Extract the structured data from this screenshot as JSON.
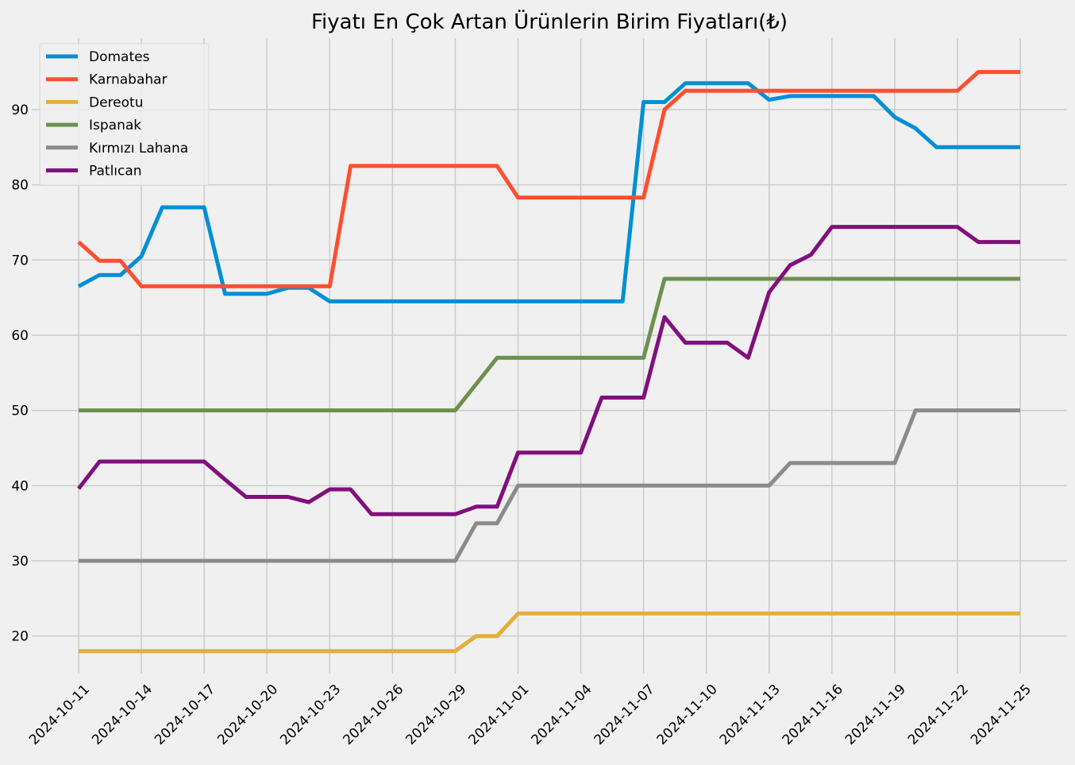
{
  "chart_data": {
    "type": "line",
    "title": "Fiyatı En Çok Artan Ürünlerin Birim Fiyatları(₺)",
    "xlabel": "",
    "ylabel": "",
    "x": [
      "2024-10-11",
      "2024-10-12",
      "2024-10-13",
      "2024-10-14",
      "2024-10-15",
      "2024-10-16",
      "2024-10-17",
      "2024-10-18",
      "2024-10-19",
      "2024-10-20",
      "2024-10-21",
      "2024-10-22",
      "2024-10-23",
      "2024-10-24",
      "2024-10-25",
      "2024-10-26",
      "2024-10-27",
      "2024-10-28",
      "2024-10-29",
      "2024-10-30",
      "2024-10-31",
      "2024-11-01",
      "2024-11-02",
      "2024-11-03",
      "2024-11-04",
      "2024-11-05",
      "2024-11-06",
      "2024-11-07",
      "2024-11-08",
      "2024-11-09",
      "2024-11-10",
      "2024-11-11",
      "2024-11-12",
      "2024-11-13",
      "2024-11-14",
      "2024-11-15",
      "2024-11-16",
      "2024-11-17",
      "2024-11-18",
      "2024-11-19",
      "2024-11-20",
      "2024-11-21",
      "2024-11-22",
      "2024-11-23",
      "2024-11-24",
      "2024-11-25"
    ],
    "x_ticks": [
      "2024-10-11",
      "2024-10-14",
      "2024-10-17",
      "2024-10-20",
      "2024-10-23",
      "2024-10-26",
      "2024-10-29",
      "2024-11-01",
      "2024-11-04",
      "2024-11-07",
      "2024-11-10",
      "2024-11-13",
      "2024-11-16",
      "2024-11-19",
      "2024-11-22",
      "2024-11-25"
    ],
    "y_ticks": [
      20,
      30,
      40,
      50,
      60,
      70,
      80,
      90
    ],
    "ylim": [
      15,
      99.5
    ],
    "grid": true,
    "legend_position": "top-left",
    "series": [
      {
        "name": "Domates",
        "color": "#008fd5",
        "values": [
          66.5,
          68,
          68,
          70.5,
          77,
          77,
          77,
          65.5,
          65.5,
          65.5,
          66.3,
          66.3,
          64.5,
          64.5,
          64.5,
          64.5,
          64.5,
          64.5,
          64.5,
          64.5,
          64.5,
          64.5,
          64.5,
          64.5,
          64.5,
          64.5,
          64.5,
          91,
          91,
          93.5,
          93.5,
          93.5,
          93.5,
          91.3,
          91.8,
          91.8,
          91.8,
          91.8,
          91.8,
          89,
          87.5,
          85,
          85,
          85,
          85,
          85
        ]
      },
      {
        "name": "Karnabahar",
        "color": "#fc4f30",
        "values": [
          72.4,
          69.9,
          69.9,
          66.5,
          66.5,
          66.5,
          66.5,
          66.5,
          66.5,
          66.5,
          66.5,
          66.5,
          66.5,
          82.5,
          82.5,
          82.5,
          82.5,
          82.5,
          82.5,
          82.5,
          82.5,
          78.3,
          78.3,
          78.3,
          78.3,
          78.3,
          78.3,
          78.3,
          90,
          92.5,
          92.5,
          92.5,
          92.5,
          92.5,
          92.5,
          92.5,
          92.5,
          92.5,
          92.5,
          92.5,
          92.5,
          92.5,
          92.5,
          95,
          95,
          95
        ]
      },
      {
        "name": "Dereotu",
        "color": "#e5ae38",
        "values": [
          18,
          18,
          18,
          18,
          18,
          18,
          18,
          18,
          18,
          18,
          18,
          18,
          18,
          18,
          18,
          18,
          18,
          18,
          18,
          20,
          20,
          23,
          23,
          23,
          23,
          23,
          23,
          23,
          23,
          23,
          23,
          23,
          23,
          23,
          23,
          23,
          23,
          23,
          23,
          23,
          23,
          23,
          23,
          23,
          23,
          23
        ]
      },
      {
        "name": "Ispanak",
        "color": "#6d904f",
        "values": [
          50,
          50,
          50,
          50,
          50,
          50,
          50,
          50,
          50,
          50,
          50,
          50,
          50,
          50,
          50,
          50,
          50,
          50,
          50,
          53.5,
          57,
          57,
          57,
          57,
          57,
          57,
          57,
          57,
          67.5,
          67.5,
          67.5,
          67.5,
          67.5,
          67.5,
          67.5,
          67.5,
          67.5,
          67.5,
          67.5,
          67.5,
          67.5,
          67.5,
          67.5,
          67.5,
          67.5,
          67.5
        ]
      },
      {
        "name": "Kırmızı Lahana",
        "color": "#8b8b8b",
        "values": [
          30,
          30,
          30,
          30,
          30,
          30,
          30,
          30,
          30,
          30,
          30,
          30,
          30,
          30,
          30,
          30,
          30,
          30,
          30,
          35,
          35,
          40,
          40,
          40,
          40,
          40,
          40,
          40,
          40,
          40,
          40,
          40,
          40,
          40,
          43,
          43,
          43,
          43,
          43,
          43,
          50,
          50,
          50,
          50,
          50,
          50
        ]
      },
      {
        "name": "Patlıcan",
        "color": "#810f7c",
        "values": [
          39.6,
          43.2,
          43.2,
          43.2,
          43.2,
          43.2,
          43.2,
          40.8,
          38.5,
          38.5,
          38.5,
          37.8,
          39.5,
          39.5,
          36.2,
          36.2,
          36.2,
          36.2,
          36.2,
          37.2,
          37.2,
          44.4,
          44.4,
          44.4,
          44.4,
          51.7,
          51.7,
          51.7,
          62.4,
          59,
          59,
          59,
          57,
          65.7,
          69.3,
          70.7,
          74.4,
          74.4,
          74.4,
          74.4,
          74.4,
          74.4,
          74.4,
          72.4,
          72.4,
          72.4
        ]
      }
    ]
  }
}
